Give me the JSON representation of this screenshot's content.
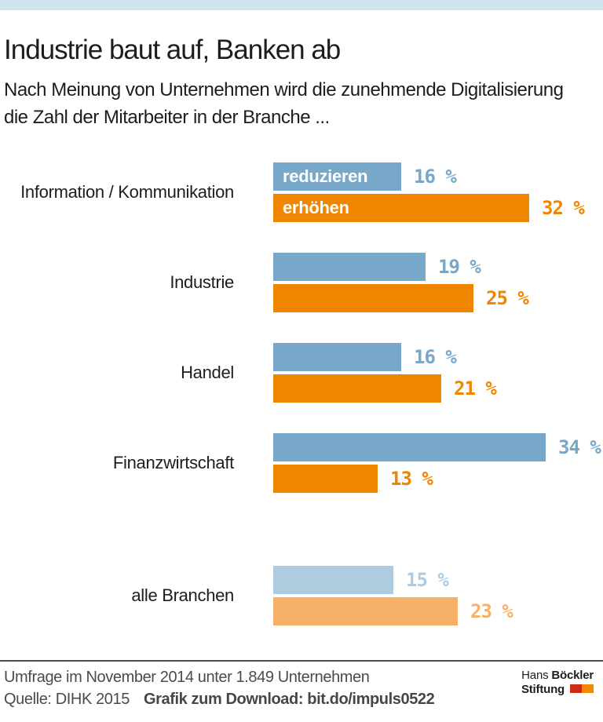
{
  "header": {
    "title": "Industrie baut auf, Banken ab",
    "subtitle_line1": "Nach Meinung von Unternehmen wird die zunehmende Digitalisierung",
    "subtitle_line2": "die Zahl der Mitarbeiter in der Branche ..."
  },
  "chart_data": {
    "type": "bar",
    "orientation": "horizontal",
    "title": "Industrie baut auf, Banken ab",
    "categories": [
      "Information / Kommunikation",
      "Industrie",
      "Handel",
      "Finanzwirtschaft",
      "alle Branchen"
    ],
    "series": [
      {
        "name": "reduzieren",
        "color": "#77a8c9",
        "muted_color": "#aecbdf",
        "values": [
          16,
          19,
          16,
          34,
          15
        ]
      },
      {
        "name": "erhöhen",
        "color": "#f08500",
        "muted_color": "#f6b067",
        "values": [
          32,
          25,
          21,
          13,
          23
        ]
      }
    ],
    "value_suffix": " %",
    "xlim": [
      0,
      40
    ],
    "grid": false,
    "legend_position": "inline-first-group",
    "muted_categories": [
      "alle Branchen"
    ]
  },
  "theme": {
    "band_color": "#cee5ef",
    "text_color": "#1d1d1b",
    "footer_text_color": "#4b4b4b"
  },
  "footer": {
    "note": "Umfrage im November 2014 unter 1.849 Unternehmen",
    "source": "Quelle: DIHK 2015",
    "download": "Grafik zum Download: bit.do/impuls0522",
    "logo": {
      "line1_regular": "Hans",
      "line1_bold": "Böckler",
      "line2_bold": "Stiftung",
      "square_colors": [
        "#cd2c14",
        "#f08a00"
      ]
    }
  }
}
